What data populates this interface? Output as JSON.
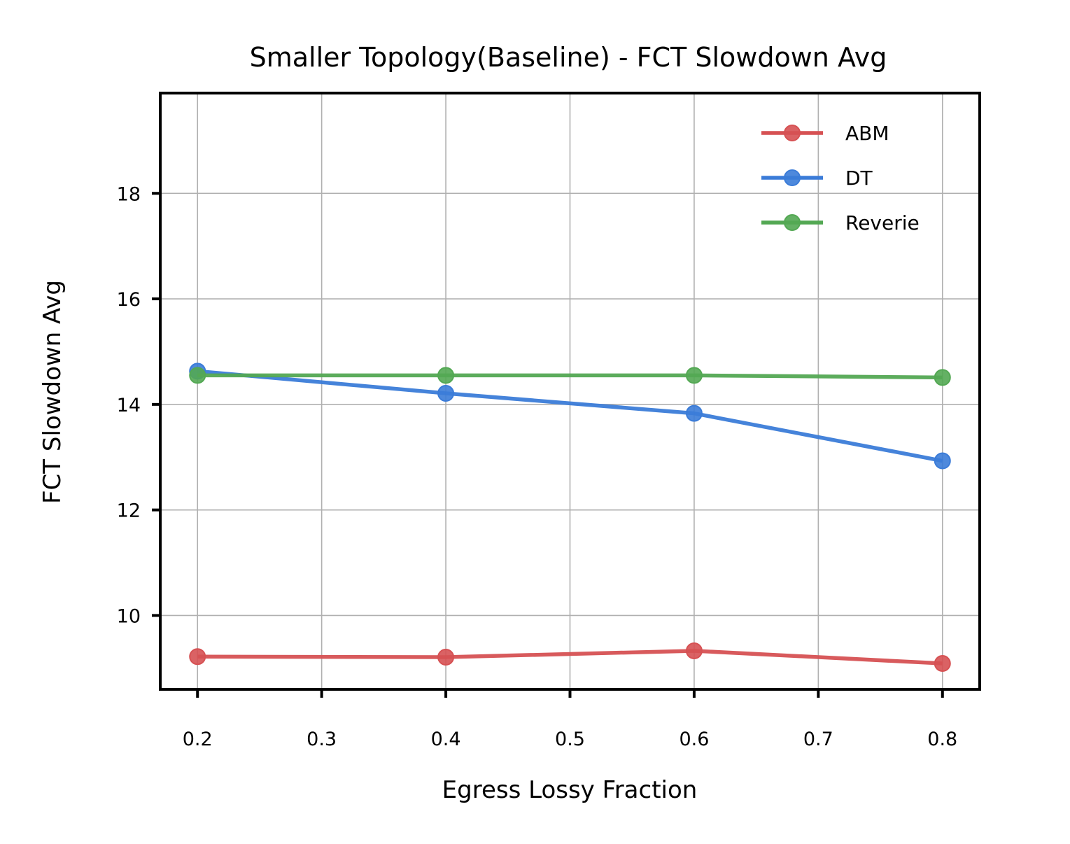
{
  "chart_data": {
    "type": "line",
    "title": "Smaller Topology(Baseline) - FCT Slowdown Avg",
    "xlabel": "Egress Lossy Fraction",
    "ylabel": "FCT Slowdown Avg",
    "x": [
      0.2,
      0.4,
      0.6,
      0.8
    ],
    "xticks": [
      0.2,
      0.3,
      0.4,
      0.5,
      0.6,
      0.7,
      0.8
    ],
    "xtick_labels": [
      "0.2",
      "0.3",
      "0.4",
      "0.5",
      "0.6",
      "0.7",
      "0.8"
    ],
    "yticks": [
      10,
      12,
      14,
      16,
      18
    ],
    "ytick_labels": [
      "10",
      "12",
      "14",
      "16",
      "18"
    ],
    "xlim": [
      0.17,
      0.83
    ],
    "ylim": [
      8.6,
      19.9
    ],
    "grid": true,
    "legend_position": "top-right",
    "series": [
      {
        "name": "ABM",
        "color": "#d65153",
        "values": [
          9.22,
          9.21,
          9.33,
          9.09
        ]
      },
      {
        "name": "DT",
        "color": "#3b7cd8",
        "values": [
          14.63,
          14.21,
          13.83,
          12.93
        ]
      },
      {
        "name": "Reverie",
        "color": "#53a853",
        "values": [
          14.55,
          14.55,
          14.55,
          14.51
        ]
      }
    ]
  }
}
